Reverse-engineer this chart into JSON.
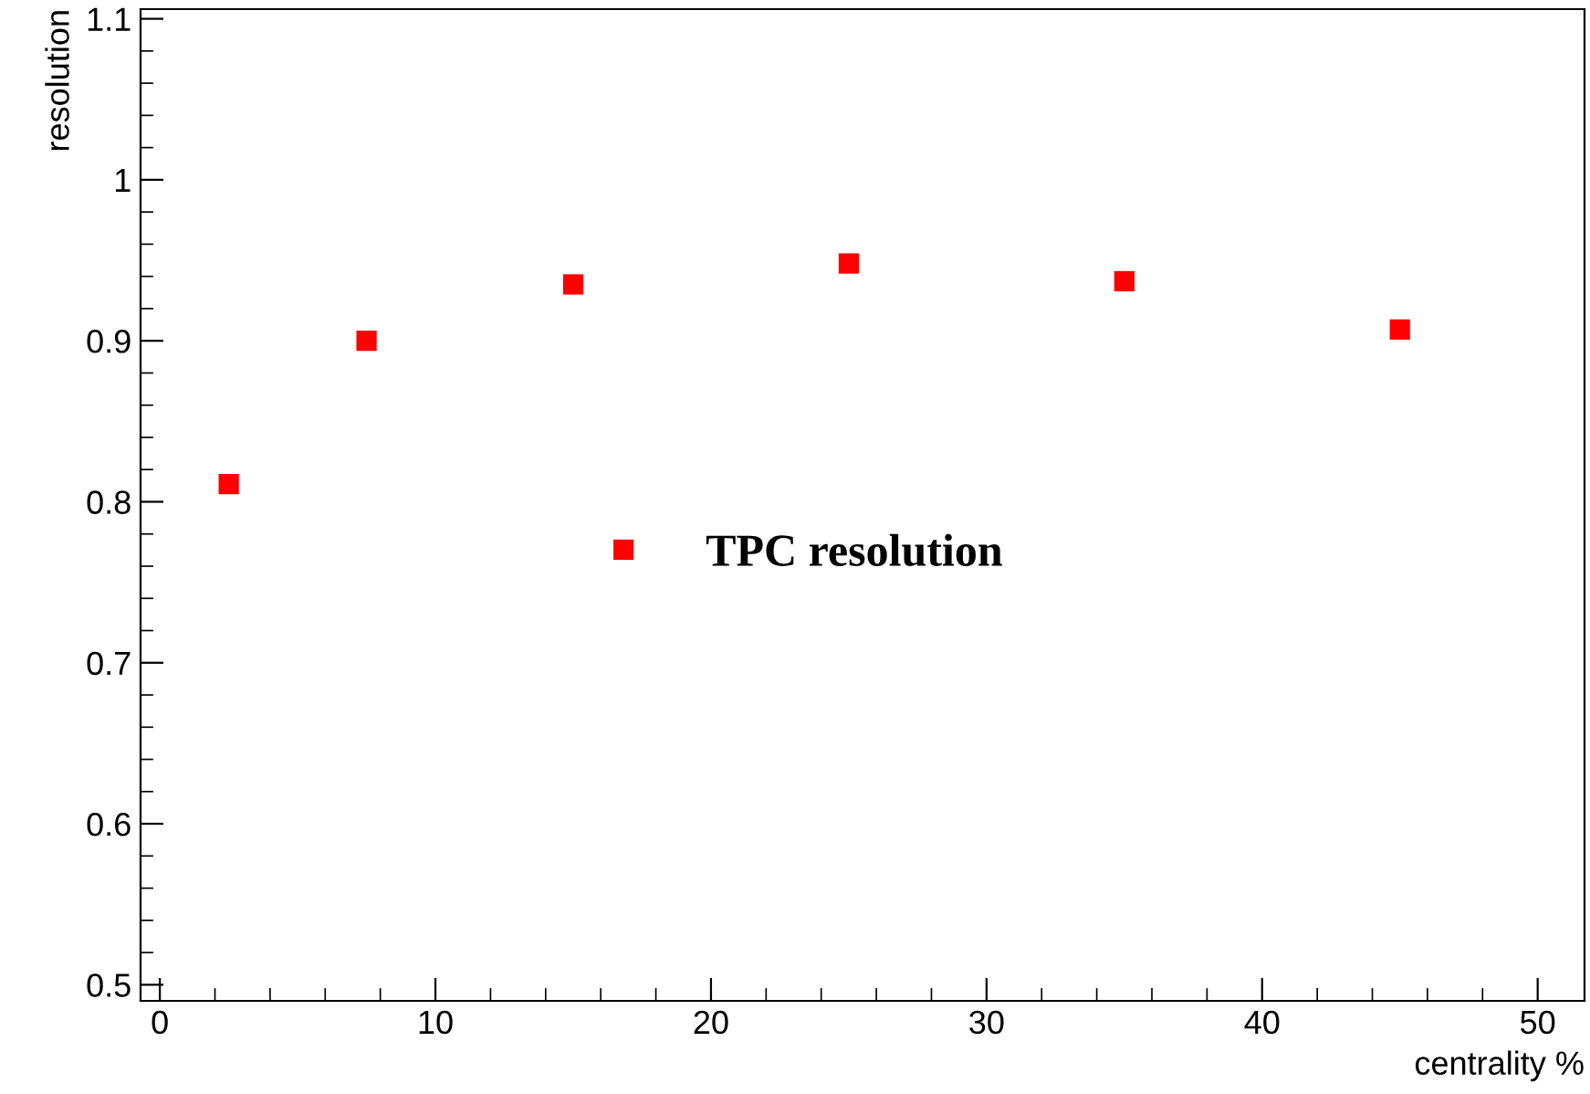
{
  "chart_data": {
    "type": "scatter",
    "xlabel": "centrality %",
    "ylabel": "resolution",
    "x": [
      2.5,
      7.5,
      15,
      25,
      35,
      45
    ],
    "series": [
      {
        "name": "TPC resolution",
        "color": "#ff0000",
        "values": [
          0.811,
          0.9,
          0.935,
          0.948,
          0.937,
          0.907
        ]
      }
    ],
    "xlim": [
      -0.7,
      51.7
    ],
    "ylim": [
      0.49,
      1.106
    ],
    "xticks": [
      0,
      10,
      20,
      30,
      40,
      50
    ],
    "yticks": [
      0.5,
      0.6,
      0.7,
      0.8,
      0.9,
      1,
      1.1
    ],
    "marker": "square",
    "legend": "center",
    "grid": false
  }
}
